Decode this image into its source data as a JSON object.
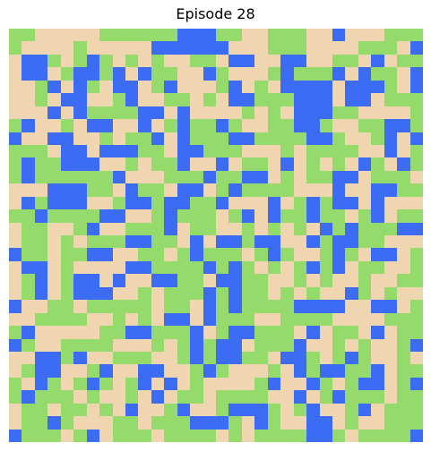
{
  "title": "Episode 28",
  "palette": {
    "0": "#efd6b0",
    "1": "#94db6b",
    "2": "#3c6cf4"
  },
  "grid": {
    "rows": 32,
    "cols": 32,
    "cells": [
      "11000001111112221100111002000111",
      "10000100000222222000111000011102",
      "02210121010100110220022001102011",
      "02201221202110021000121112021102",
      "00120210220120001201022220222102",
      "00102200120011010221112220220111",
      "00020211112202000010102221100001",
      "12001022002012112100112210011221",
      "20022001011202111221111221001202",
      "11102202221102211100010111100201",
      "12112220010112002011020101021021",
      "12111111200011121122010112201110",
      "00022211021102201211110002002211",
      "02122200122122112000201212202000",
      "11211112200121110120211211012011",
      "01100120011120110010101021211122",
      "01101011122110202212200212211000",
      "21101122001101211101210012102201",
      "02201000022111121210101212011001",
      "01201220200221102211001010010011",
      "01201222001011121211010100210100",
      "20011011111011021211112222002201",
      "00111100101022021110011110000111",
      "12000001122111201221110201102011",
      "21001111000101212201112001010012",
      "00221200111001212211022101210010",
      "01220012002200121000102122112011",
      "10210121012020100001200210122012",
      "12111010010201101111002012111011",
      "01101101020012001222101200120111",
      "01121000110111222102100220100111",
      "21110120111011110101111221011112"
    ]
  }
}
